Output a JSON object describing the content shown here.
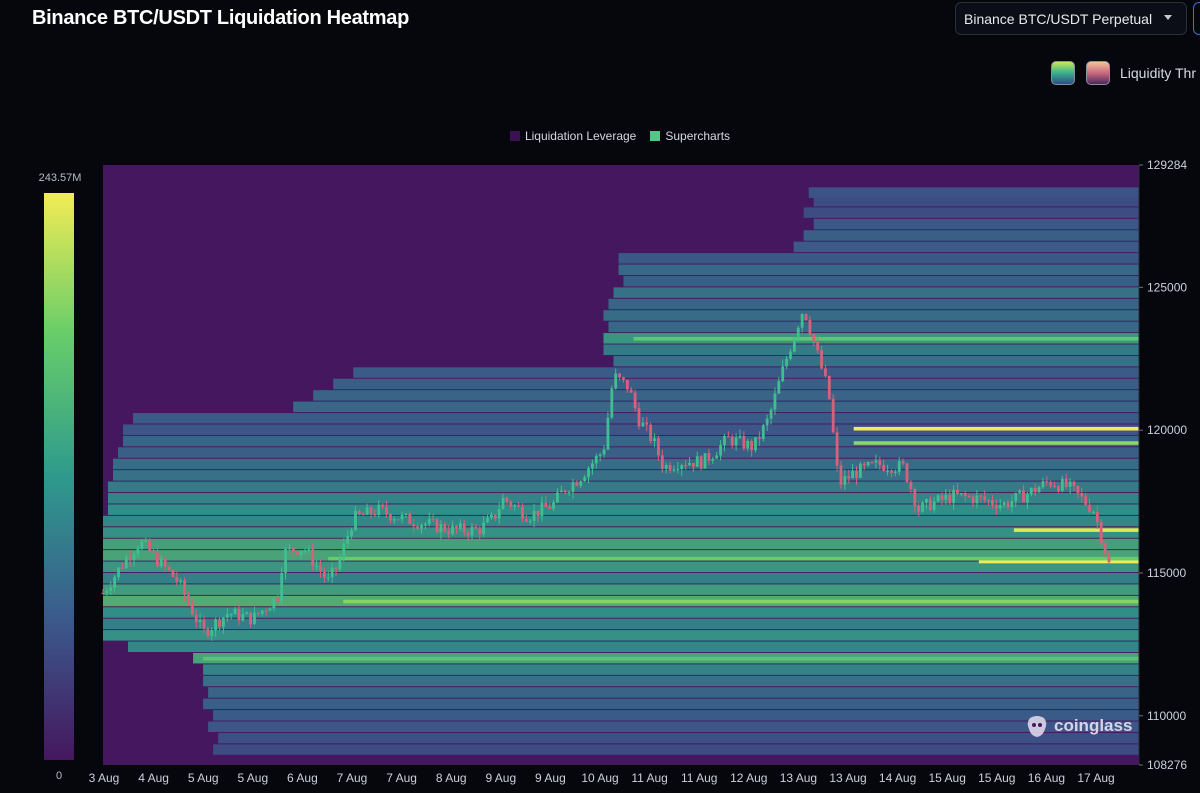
{
  "header": {
    "title": "Binance BTC/USDT Liquidation Heatmap",
    "pair_selector": "Binance BTC/USDT Perpetual",
    "liquidity_label": "Liquidity Thr"
  },
  "colors": {
    "background": "#05070d",
    "heatmap_base": "#45175e",
    "legend_liquidation_leverage": "#3b1153",
    "legend_supercharts": "#4fc98a"
  },
  "watermark": {
    "text": "coinglass"
  },
  "chart_data": {
    "type": "heatmap",
    "title": "",
    "legend": [
      {
        "name": "Liquidation Leverage",
        "color": "#3b1153"
      },
      {
        "name": "Supercharts",
        "color": "#4fc98a"
      }
    ],
    "colorbar": {
      "max_label": "243.57M",
      "min_label": "0",
      "colors": [
        "#45175e",
        "#3b5a8c",
        "#2e9a8c",
        "#67cd6a",
        "#f2ec54"
      ]
    },
    "x_ticks": [
      "3 Aug",
      "4 Aug",
      "5 Aug",
      "5 Aug",
      "6 Aug",
      "7 Aug",
      "7 Aug",
      "8 Aug",
      "9 Aug",
      "9 Aug",
      "10 Aug",
      "11 Aug",
      "11 Aug",
      "12 Aug",
      "13 Aug",
      "13 Aug",
      "14 Aug",
      "15 Aug",
      "15 Aug",
      "16 Aug",
      "17 Aug"
    ],
    "y_axis": {
      "min": 108276,
      "max": 129284,
      "ticks": [
        108276,
        110000,
        115000,
        120000,
        125000,
        129284
      ]
    },
    "price_series": {
      "name": "BTC/USDT",
      "points": [
        {
          "d": 0.0,
          "p": 114300
        },
        {
          "d": 0.5,
          "p": 115600
        },
        {
          "d": 0.75,
          "p": 116100
        },
        {
          "d": 1.0,
          "p": 115600
        },
        {
          "d": 1.5,
          "p": 114700
        },
        {
          "d": 2.0,
          "p": 112900
        },
        {
          "d": 2.5,
          "p": 113600
        },
        {
          "d": 3.0,
          "p": 113400
        },
        {
          "d": 3.5,
          "p": 114200
        },
        {
          "d": 3.6,
          "p": 115700
        },
        {
          "d": 4.0,
          "p": 115900
        },
        {
          "d": 4.5,
          "p": 114700
        },
        {
          "d": 4.7,
          "p": 115300
        },
        {
          "d": 5.0,
          "p": 116900
        },
        {
          "d": 5.5,
          "p": 117200
        },
        {
          "d": 6.0,
          "p": 116900
        },
        {
          "d": 6.5,
          "p": 116700
        },
        {
          "d": 7.0,
          "p": 116500
        },
        {
          "d": 7.5,
          "p": 116500
        },
        {
          "d": 7.8,
          "p": 116900
        },
        {
          "d": 8.0,
          "p": 117600
        },
        {
          "d": 8.5,
          "p": 117000
        },
        {
          "d": 9.0,
          "p": 117400
        },
        {
          "d": 9.2,
          "p": 117900
        },
        {
          "d": 9.5,
          "p": 118300
        },
        {
          "d": 9.7,
          "p": 118700
        },
        {
          "d": 10.0,
          "p": 119300
        },
        {
          "d": 10.2,
          "p": 121900
        },
        {
          "d": 10.5,
          "p": 121500
        },
        {
          "d": 10.7,
          "p": 120400
        },
        {
          "d": 11.0,
          "p": 119600
        },
        {
          "d": 11.2,
          "p": 118700
        },
        {
          "d": 11.5,
          "p": 118900
        },
        {
          "d": 12.0,
          "p": 118900
        },
        {
          "d": 12.5,
          "p": 119700
        },
        {
          "d": 13.0,
          "p": 119400
        },
        {
          "d": 13.3,
          "p": 120400
        },
        {
          "d": 13.6,
          "p": 122200
        },
        {
          "d": 13.9,
          "p": 123800
        },
        {
          "d": 14.0,
          "p": 124300
        },
        {
          "d": 14.3,
          "p": 122500
        },
        {
          "d": 14.5,
          "p": 121300
        },
        {
          "d": 14.7,
          "p": 118100
        },
        {
          "d": 15.0,
          "p": 118500
        },
        {
          "d": 15.5,
          "p": 118800
        },
        {
          "d": 16.0,
          "p": 118700
        },
        {
          "d": 16.3,
          "p": 117200
        },
        {
          "d": 16.5,
          "p": 117400
        },
        {
          "d": 17.0,
          "p": 117700
        },
        {
          "d": 17.5,
          "p": 117600
        },
        {
          "d": 18.0,
          "p": 117400
        },
        {
          "d": 18.5,
          "p": 117800
        },
        {
          "d": 18.9,
          "p": 118200
        },
        {
          "d": 19.3,
          "p": 118000
        },
        {
          "d": 19.8,
          "p": 117200
        },
        {
          "d": 20.1,
          "p": 115300
        }
      ]
    },
    "liquidation_bands": [
      {
        "price": 128300,
        "start_day": 14.1,
        "intensity": 0.25
      },
      {
        "price": 128000,
        "start_day": 14.2,
        "intensity": 0.22
      },
      {
        "price": 127600,
        "start_day": 14.0,
        "intensity": 0.22
      },
      {
        "price": 127200,
        "start_day": 14.2,
        "intensity": 0.26
      },
      {
        "price": 126800,
        "start_day": 14.0,
        "intensity": 0.3
      },
      {
        "price": 126400,
        "start_day": 13.8,
        "intensity": 0.28
      },
      {
        "price": 126000,
        "start_day": 10.3,
        "intensity": 0.27
      },
      {
        "price": 125600,
        "start_day": 10.3,
        "intensity": 0.34
      },
      {
        "price": 125200,
        "start_day": 10.4,
        "intensity": 0.3
      },
      {
        "price": 124800,
        "start_day": 10.2,
        "intensity": 0.38
      },
      {
        "price": 124400,
        "start_day": 10.1,
        "intensity": 0.32
      },
      {
        "price": 124000,
        "start_day": 10.0,
        "intensity": 0.36
      },
      {
        "price": 123600,
        "start_day": 10.1,
        "intensity": 0.34
      },
      {
        "price": 123200,
        "start_day": 10.0,
        "intensity": 0.55
      },
      {
        "price": 122800,
        "start_day": 10.0,
        "intensity": 0.42
      },
      {
        "price": 122400,
        "start_day": 10.2,
        "intensity": 0.38
      },
      {
        "price": 122000,
        "start_day": 5.0,
        "intensity": 0.28
      },
      {
        "price": 121600,
        "start_day": 4.6,
        "intensity": 0.3
      },
      {
        "price": 121200,
        "start_day": 4.2,
        "intensity": 0.32
      },
      {
        "price": 120800,
        "start_day": 3.8,
        "intensity": 0.34
      },
      {
        "price": 120400,
        "start_day": 0.6,
        "intensity": 0.28
      },
      {
        "price": 120000,
        "start_day": 0.4,
        "intensity": 0.26
      },
      {
        "price": 119600,
        "start_day": 0.4,
        "intensity": 0.32
      },
      {
        "price": 119200,
        "start_day": 0.3,
        "intensity": 0.3
      },
      {
        "price": 118800,
        "start_day": 0.2,
        "intensity": 0.36
      },
      {
        "price": 118400,
        "start_day": 0.2,
        "intensity": 0.38
      },
      {
        "price": 118000,
        "start_day": 0.1,
        "intensity": 0.42
      },
      {
        "price": 117600,
        "start_day": 0.1,
        "intensity": 0.46
      },
      {
        "price": 117200,
        "start_day": 0.1,
        "intensity": 0.5
      },
      {
        "price": 116800,
        "start_day": 0.0,
        "intensity": 0.48
      },
      {
        "price": 116400,
        "start_day": 0.0,
        "intensity": 0.52
      },
      {
        "price": 116000,
        "start_day": 0.0,
        "intensity": 0.6
      },
      {
        "price": 115600,
        "start_day": 0.0,
        "intensity": 0.62
      },
      {
        "price": 115200,
        "start_day": 0.0,
        "intensity": 0.55
      },
      {
        "price": 114800,
        "start_day": 0.0,
        "intensity": 0.45
      },
      {
        "price": 114400,
        "start_day": 0.0,
        "intensity": 0.58
      },
      {
        "price": 114000,
        "start_day": 0.0,
        "intensity": 0.66
      },
      {
        "price": 113600,
        "start_day": 0.0,
        "intensity": 0.5
      },
      {
        "price": 113200,
        "start_day": 0.0,
        "intensity": 0.44
      },
      {
        "price": 112800,
        "start_day": 0.0,
        "intensity": 0.52
      },
      {
        "price": 112400,
        "start_day": 0.5,
        "intensity": 0.48
      },
      {
        "price": 112000,
        "start_day": 1.8,
        "intensity": 0.62
      },
      {
        "price": 111600,
        "start_day": 2.0,
        "intensity": 0.46
      },
      {
        "price": 111200,
        "start_day": 2.0,
        "intensity": 0.38
      },
      {
        "price": 110800,
        "start_day": 2.1,
        "intensity": 0.32
      },
      {
        "price": 110400,
        "start_day": 2.0,
        "intensity": 0.3
      },
      {
        "price": 110000,
        "start_day": 2.2,
        "intensity": 0.28
      },
      {
        "price": 109600,
        "start_day": 2.1,
        "intensity": 0.26
      },
      {
        "price": 109200,
        "start_day": 2.3,
        "intensity": 0.24
      },
      {
        "price": 108800,
        "start_day": 2.2,
        "intensity": 0.22
      }
    ],
    "highlight_bands": [
      {
        "price": 120050,
        "start_day": 15.0,
        "intensity": 1.0
      },
      {
        "price": 119550,
        "start_day": 15.0,
        "intensity": 0.82
      },
      {
        "price": 116500,
        "start_day": 18.2,
        "intensity": 0.97
      },
      {
        "price": 115400,
        "start_day": 17.5,
        "intensity": 1.0
      },
      {
        "price": 115500,
        "start_day": 4.5,
        "intensity": 0.75
      },
      {
        "price": 114000,
        "start_day": 4.8,
        "intensity": 0.8
      },
      {
        "price": 123200,
        "start_day": 10.6,
        "intensity": 0.72
      },
      {
        "price": 112000,
        "start_day": 2.0,
        "intensity": 0.7
      }
    ]
  }
}
